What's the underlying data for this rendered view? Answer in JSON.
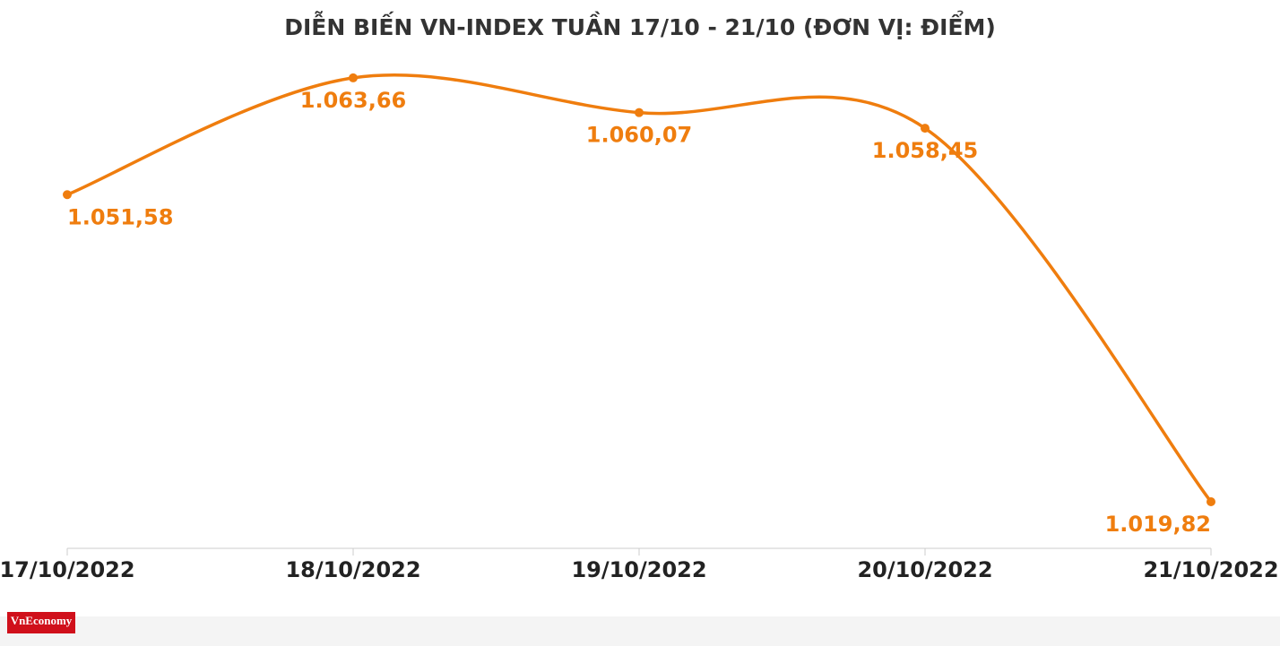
{
  "chart_data": {
    "type": "line",
    "title": "DIỄN BIẾN VN-INDEX TUẦN 17/10 - 21/10 (ĐƠN VỊ: ĐIỂM)",
    "categories": [
      "17/10/2022",
      "18/10/2022",
      "19/10/2022",
      "20/10/2022",
      "21/10/2022"
    ],
    "series": [
      {
        "name": "VN-Index",
        "color": "#ef7d0e",
        "values": [
          1051.58,
          1063.66,
          1060.07,
          1058.45,
          1019.82
        ],
        "value_labels": [
          "1.051,58",
          "1.063,66",
          "1.060,07",
          "1.058,45",
          "1.019,82"
        ]
      }
    ],
    "ylim": [
      1015,
      1070
    ],
    "legend": false,
    "grid": false
  },
  "logo": "VnEconomy"
}
